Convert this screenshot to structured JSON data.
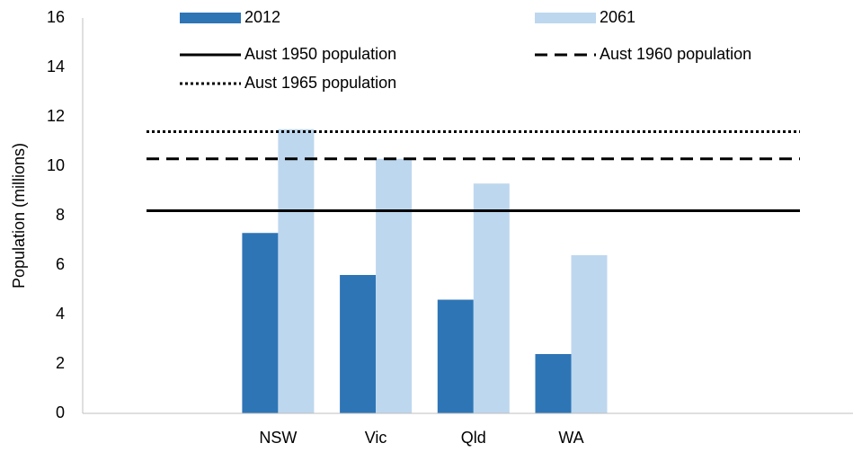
{
  "chart_data": {
    "type": "bar",
    "y_label": "Population (millions)",
    "categories": [
      null,
      "NSW",
      "Vic",
      "Qld",
      "WA",
      null,
      null
    ],
    "series": [
      {
        "name": "2012",
        "color": "#2e75b6",
        "values": [
          null,
          7.3,
          5.6,
          4.6,
          2.4,
          null,
          null
        ]
      },
      {
        "name": "2061",
        "color": "#bdd7ee",
        "values": [
          null,
          11.5,
          10.3,
          9.3,
          6.4,
          null,
          null
        ]
      }
    ],
    "reference_lines": [
      {
        "name": "Aust 1950 population",
        "value": 8.2,
        "style": "solid",
        "color": "#000000"
      },
      {
        "name": "Aust 1960 population",
        "value": 10.3,
        "style": "dashed",
        "color": "#000000"
      },
      {
        "name": "Aust 1965 population",
        "value": 11.4,
        "style": "dotted",
        "color": "#000000"
      }
    ],
    "ylim": [
      0,
      16
    ],
    "yticks": [
      0,
      2,
      4,
      6,
      8,
      10,
      12,
      14,
      16
    ],
    "grid": false
  }
}
